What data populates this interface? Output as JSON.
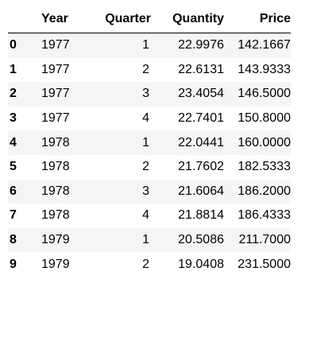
{
  "table": {
    "index_header": "",
    "columns": [
      "Year",
      "Quarter",
      "Quantity",
      "Price"
    ],
    "rows": [
      {
        "index": "0",
        "year": "1977",
        "quarter": "1",
        "quantity": "22.9976",
        "price": "142.1667"
      },
      {
        "index": "1",
        "year": "1977",
        "quarter": "2",
        "quantity": "22.6131",
        "price": "143.9333"
      },
      {
        "index": "2",
        "year": "1977",
        "quarter": "3",
        "quantity": "23.4054",
        "price": "146.5000"
      },
      {
        "index": "3",
        "year": "1977",
        "quarter": "4",
        "quantity": "22.7401",
        "price": "150.8000"
      },
      {
        "index": "4",
        "year": "1978",
        "quarter": "1",
        "quantity": "22.0441",
        "price": "160.0000"
      },
      {
        "index": "5",
        "year": "1978",
        "quarter": "2",
        "quantity": "21.7602",
        "price": "182.5333"
      },
      {
        "index": "6",
        "year": "1978",
        "quarter": "3",
        "quantity": "21.6064",
        "price": "186.2000"
      },
      {
        "index": "7",
        "year": "1978",
        "quarter": "4",
        "quantity": "21.8814",
        "price": "186.4333"
      },
      {
        "index": "8",
        "year": "1979",
        "quarter": "1",
        "quantity": "20.5086",
        "price": "211.7000"
      },
      {
        "index": "9",
        "year": "1979",
        "quarter": "2",
        "quantity": "19.0408",
        "price": "231.5000"
      }
    ]
  },
  "colors": {
    "stripe": "#f5f5f5",
    "text": "#000000",
    "header_rule": "#000000"
  }
}
